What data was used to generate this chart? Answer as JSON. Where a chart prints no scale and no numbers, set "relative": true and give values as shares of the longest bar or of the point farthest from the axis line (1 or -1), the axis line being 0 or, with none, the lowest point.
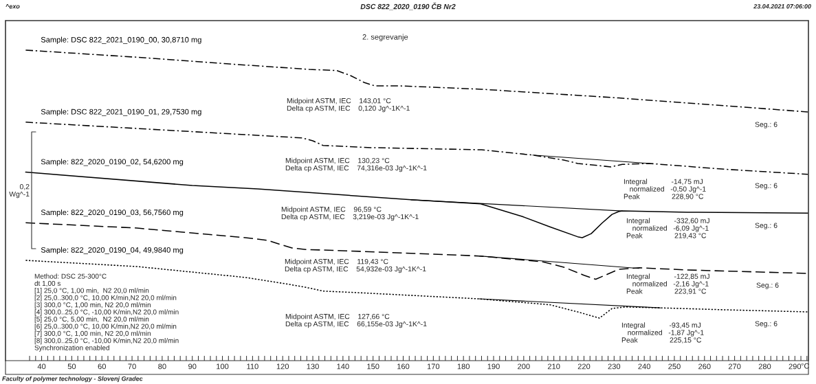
{
  "chart_data": {
    "type": "line",
    "title": "DSC 822_2020_0190 ČB Nr2",
    "subtitle": "2. segrevanje",
    "xlabel": "°C",
    "relative": true,
    "xlim": [
      28,
      294.5
    ],
    "xticks": [
      {
        "value": 36,
        "label": null
      },
      {
        "value": 38,
        "label": null
      },
      40,
      {
        "value": 42,
        "label": null
      },
      {
        "value": 44,
        "label": null
      },
      {
        "value": 46,
        "label": null
      },
      {
        "value": 48,
        "label": null
      },
      50,
      {
        "value": 52,
        "label": null
      },
      {
        "value": 54,
        "label": null
      },
      {
        "value": 56,
        "label": null
      },
      {
        "value": 58,
        "label": null
      },
      60,
      {
        "value": 62,
        "label": null
      },
      {
        "value": 64,
        "label": null
      },
      {
        "value": 66,
        "label": null
      },
      {
        "value": 68,
        "label": null
      },
      70,
      {
        "value": 72,
        "label": null
      },
      {
        "value": 74,
        "label": null
      },
      {
        "value": 76,
        "label": null
      },
      {
        "value": 78,
        "label": null
      },
      80,
      {
        "value": 82,
        "label": null
      },
      {
        "value": 84,
        "label": null
      },
      {
        "value": 86,
        "label": null
      },
      {
        "value": 88,
        "label": null
      },
      90,
      {
        "value": 92,
        "label": null
      },
      {
        "value": 94,
        "label": null
      },
      {
        "value": 96,
        "label": null
      },
      {
        "value": 98,
        "label": null
      },
      100,
      {
        "value": 102,
        "label": null
      },
      {
        "value": 104,
        "label": null
      },
      {
        "value": 106,
        "label": null
      },
      {
        "value": 108,
        "label": null
      },
      110,
      {
        "value": 112,
        "label": null
      },
      {
        "value": 114,
        "label": null
      },
      {
        "value": 116,
        "label": null
      },
      {
        "value": 118,
        "label": null
      },
      120,
      {
        "value": 122,
        "label": null
      },
      {
        "value": 124,
        "label": null
      },
      {
        "value": 126,
        "label": null
      },
      {
        "value": 128,
        "label": null
      },
      130,
      {
        "value": 132,
        "label": null
      },
      {
        "value": 134,
        "label": null
      },
      {
        "value": 136,
        "label": null
      },
      {
        "value": 138,
        "label": null
      },
      140,
      {
        "value": 142,
        "label": null
      },
      {
        "value": 144,
        "label": null
      },
      {
        "value": 146,
        "label": null
      },
      {
        "value": 148,
        "label": null
      },
      150,
      {
        "value": 152,
        "label": null
      },
      {
        "value": 154,
        "label": null
      },
      {
        "value": 156,
        "label": null
      },
      {
        "value": 158,
        "label": null
      },
      160,
      {
        "value": 162,
        "label": null
      },
      {
        "value": 164,
        "label": null
      },
      {
        "value": 166,
        "label": null
      },
      {
        "value": 168,
        "label": null
      },
      170,
      {
        "value": 172,
        "label": null
      },
      {
        "value": 174,
        "label": null
      },
      {
        "value": 176,
        "label": null
      },
      {
        "value": 178,
        "label": null
      },
      180,
      {
        "value": 182,
        "label": null
      },
      {
        "value": 184,
        "label": null
      },
      {
        "value": 186,
        "label": null
      },
      {
        "value": 188,
        "label": null
      },
      190,
      {
        "value": 192,
        "label": null
      },
      {
        "value": 194,
        "label": null
      },
      {
        "value": 196,
        "label": null
      },
      {
        "value": 198,
        "label": null
      },
      200,
      {
        "value": 202,
        "label": null
      },
      {
        "value": 204,
        "label": null
      },
      {
        "value": 206,
        "label": null
      },
      {
        "value": 208,
        "label": null
      },
      210,
      {
        "value": 212,
        "label": null
      },
      {
        "value": 214,
        "label": null
      },
      {
        "value": 216,
        "label": null
      },
      {
        "value": 218,
        "label": null
      },
      220,
      {
        "value": 222,
        "label": null
      },
      {
        "value": 224,
        "label": null
      },
      {
        "value": 226,
        "label": null
      },
      {
        "value": 228,
        "label": null
      },
      230,
      {
        "value": 232,
        "label": null
      },
      {
        "value": 234,
        "label": null
      },
      {
        "value": 236,
        "label": null
      },
      {
        "value": 238,
        "label": null
      },
      240,
      {
        "value": 242,
        "label": null
      },
      {
        "value": 244,
        "label": null
      },
      {
        "value": 246,
        "label": null
      },
      {
        "value": 248,
        "label": null
      },
      250,
      {
        "value": 252,
        "label": null
      },
      {
        "value": 254,
        "label": null
      },
      {
        "value": 256,
        "label": null
      },
      {
        "value": 258,
        "label": null
      },
      260,
      {
        "value": 262,
        "label": null
      },
      {
        "value": 264,
        "label": null
      },
      {
        "value": 266,
        "label": null
      },
      {
        "value": 268,
        "label": null
      },
      270,
      {
        "value": 272,
        "label": null
      },
      {
        "value": 274,
        "label": null
      },
      {
        "value": 276,
        "label": null
      },
      {
        "value": 278,
        "label": null
      },
      280,
      {
        "value": 282,
        "label": null
      },
      {
        "value": 284,
        "label": null
      },
      {
        "value": 286,
        "label": null
      },
      {
        "value": 288,
        "label": null
      },
      290,
      {
        "value": 292,
        "label": null
      },
      {
        "value": 294,
        "label": null
      }
    ],
    "tick_labels": "x",
    "grid": false,
    "legend": false,
    "marker": "none",
    "series": [
      {
        "name": "Sample: DSC 822_2021_0190_00, 30,8710 mg",
        "color": "#000000",
        "line_style": "dashdot",
        "x": [
          34.7,
          71.7,
          101.4,
          128.8,
          138,
          142.5,
          147,
          150.5,
          158.5,
          186,
          231.5,
          254,
          294.3
        ],
        "values": [
          1.0,
          0.977,
          0.956,
          0.938,
          0.934,
          0.918,
          0.896,
          0.885,
          0.885,
          0.874,
          0.846,
          0.83,
          0.801
        ]
      },
      {
        "name": "Sample: DSC 822_2021_0190_01, 29,7530 mg",
        "color": "#000000",
        "line_style": "dashdot",
        "x": [
          34.7,
          116.3,
          126.5,
          130,
          133.4,
          149.4,
          186,
          203,
          213.3,
          217.9,
          228.9,
          232.7,
          241.8,
          265.8,
          294.3
        ],
        "values": [
          0.768,
          0.723,
          0.717,
          0.708,
          0.693,
          0.686,
          0.679,
          0.662,
          0.646,
          0.635,
          0.624,
          0.632,
          0.635,
          0.617,
          0.6
        ]
      },
      {
        "name": "Sample: 822_2020_0190_02, 54,6200 mg",
        "color": "#000000",
        "line_style": "solid",
        "x": [
          34.7,
          90,
          111.7,
          162.6,
          185.7,
          199.6,
          208.7,
          217.9,
          219.43,
          222.4,
          226,
          229.3,
          231.5,
          232.7,
          254.4,
          294.3
        ],
        "values": [
          0.607,
          0.564,
          0.553,
          0.518,
          0.505,
          0.464,
          0.431,
          0.399,
          0.396,
          0.409,
          0.443,
          0.471,
          0.48,
          0.482,
          0.478,
          0.475
        ]
      },
      {
        "name": "Sample: 822_2020_0190_03, 56,7560 mg",
        "color": "#000000",
        "line_style": "dashed",
        "x": [
          34.7,
          71.7,
          107.6,
          115.1,
          119.2,
          123.1,
          127.7,
          145.7,
          185.2,
          206.4,
          213.3,
          220,
          223.91,
          231.5,
          238.4,
          254.4,
          294.3
        ],
        "values": [
          0.444,
          0.427,
          0.396,
          0.387,
          0.374,
          0.363,
          0.358,
          0.352,
          0.337,
          0.318,
          0.301,
          0.275,
          0.262,
          0.294,
          0.299,
          0.292,
          0.281
        ]
      },
      {
        "name": "Sample: 822_2020_0190_04, 49,9840 mg",
        "color": "#000000",
        "line_style": "dotted",
        "x": [
          34.7,
          71.7,
          107.6,
          121.96,
          127.7,
          133.4,
          144.8,
          185.2,
          208.7,
          217.9,
          225.15,
          229.3,
          233.8,
          245.3,
          265.8,
          294.3
        ],
        "values": [
          0.323,
          0.303,
          0.268,
          0.246,
          0.236,
          0.224,
          0.219,
          0.199,
          0.18,
          0.157,
          0.137,
          0.168,
          0.173,
          0.17,
          0.164,
          0.157
        ]
      },
      {
        "type": "line",
        "color": "#000000",
        "line_style": "solid",
        "x": [
          203,
          241.8
        ],
        "values": [
          0.662,
          0.635
        ]
      },
      {
        "type": "line",
        "color": "#000000",
        "line_style": "solid",
        "x": [
          162.6,
          232.7
        ],
        "values": [
          0.518,
          0.482
        ]
      },
      {
        "type": "line",
        "color": "#000000",
        "line_style": "solid",
        "x": [
          185.2,
          238.2
        ],
        "values": [
          0.337,
          0.297
        ]
      },
      {
        "type": "line",
        "color": "#000000",
        "line_style": "solid",
        "x": [
          185.2,
          245.3
        ],
        "values": [
          0.199,
          0.17
        ]
      }
    ],
    "annotations": [
      "^exo",
      "23.04.2021 07:06:00",
      "Faculty of polymer technology - Slovenj Gradec",
      "0,2\nWg^-1",
      "Midpoint ASTM, IEC    143,01 °C\nDelta cp ASTM, IEC    0,120 Jg^-1K^-1",
      "Midpoint ASTM, IEC    130,23 °C\nDelta cp ASTM, IEC    74,316e-03 Jg^-1K^-1",
      "Midpoint ASTM, IEC    96,59 °C\nDelta cp ASTM, IEC    3,219e-03 Jg^-1K^-1",
      "Midpoint ASTM, IEC    119,43 °C\nDelta cp ASTM, IEC    54,932e-03 Jg^-1K^-1",
      "Midpoint ASTM, IEC    127,66 °C\nDelta cp ASTM, IEC    66,155e-03 Jg^-1K^-1",
      "Integral            -14,75 mJ\n   normalized   -0,50 Jg^-1\nPeak                228,90 °C",
      "Integral            -332,60 mJ\n   normalized   -6,09 Jg^-1\nPeak                219,43 °C",
      "Integral            -122,85 mJ\n   normalized   -2,16 Jg^-1\nPeak                223,91 °C",
      "Integral            -93,45 mJ\n   normalized   -1,87 Jg^-1\nPeak                225,15 °C",
      "Seg.: 6",
      "Seg.: 6",
      "Seg.: 6",
      "Seg.: 6",
      "Seg.: 6",
      "Method: DSC 25-300°C\ndt 1,00 s\n[1] 25,0 °C, 1,00 min,  N2 20,0 ml/min\n[2] 25,0..300,0 °C, 10,00 K/min,N2 20,0 ml/min\n[3] 300,0 °C, 1,00 min, N2 20,0 ml/min\n[4] 300,0..25,0 °C, -10,00 K/min,N2 20,0 ml/min\n[5] 25,0 °C, 5,00 min,  N2 20,0 ml/min\n[6] 25,0..300,0 °C, 10,00 K/min,N2 20,0 ml/min\n[7] 300,0 °C, 1,00 min, N2 20,0 ml/min\n[8] 300,0..25,0 °C, -10,00 K/min,N2 20,0 ml/min\nSynchronization enabled"
    ]
  }
}
